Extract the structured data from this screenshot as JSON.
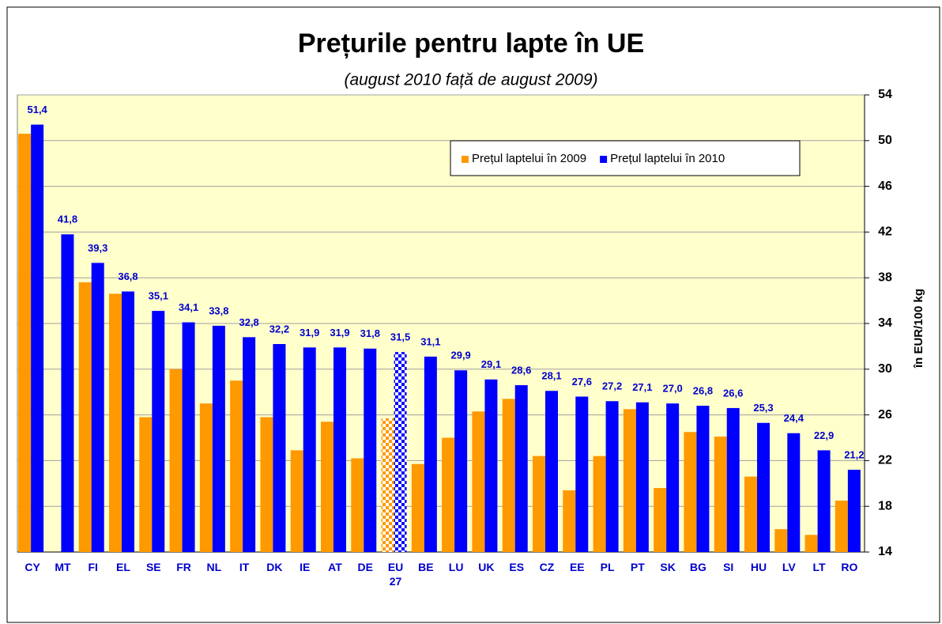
{
  "chart_data": {
    "type": "bar",
    "title": "Prețurile pentru lapte în UE",
    "subtitle": "(august 2010 față de august 2009)",
    "y_label": "în EUR/100 kg",
    "categories": [
      "CY",
      "MT",
      "FI",
      "EL",
      "SE",
      "FR",
      "NL",
      "IT",
      "DK",
      "IE",
      "AT",
      "DE",
      "EU 27",
      "BE",
      "LU",
      "UK",
      "ES",
      "CZ",
      "EE",
      "PL",
      "PT",
      "SK",
      "BG",
      "SI",
      "HU",
      "LV",
      "LT",
      "RO"
    ],
    "series": [
      {
        "name": "Prețul laptelui în 2009",
        "color": "#ff9900",
        "values": [
          50.6,
          null,
          37.6,
          36.6,
          25.8,
          30.0,
          27.0,
          29.0,
          25.8,
          22.9,
          25.4,
          22.2,
          25.7,
          21.7,
          24.0,
          26.3,
          27.4,
          22.4,
          19.4,
          22.4,
          26.5,
          19.6,
          24.5,
          24.1,
          20.6,
          16.0,
          15.5,
          18.5
        ]
      },
      {
        "name": "Prețul laptelui în 2010",
        "color": "#0000ff",
        "values": [
          51.4,
          41.8,
          39.3,
          36.8,
          35.1,
          34.1,
          33.8,
          32.8,
          32.2,
          31.9,
          31.9,
          31.8,
          31.5,
          31.1,
          29.9,
          29.1,
          28.6,
          28.1,
          27.6,
          27.2,
          27.1,
          27.0,
          26.8,
          26.6,
          25.3,
          24.4,
          22.9,
          21.2
        ],
        "value_labels": [
          "51,4",
          "41,8",
          "39,3",
          "36,8",
          "35,1",
          "34,1",
          "33,8",
          "32,8",
          "32,2",
          "31,9",
          "31,9",
          "31,8",
          "31,5",
          "31,1",
          "29,9",
          "29,1",
          "28,6",
          "28,1",
          "27,6",
          "27,2",
          "27,1",
          "27,0",
          "26,8",
          "26,6",
          "25,3",
          "24,4",
          "22,9",
          "21,2"
        ]
      }
    ],
    "highlight": "EU 27",
    "ylim": [
      14,
      54
    ],
    "yticks": [
      14,
      18,
      22,
      26,
      30,
      34,
      38,
      42,
      46,
      50,
      54
    ],
    "grid": true,
    "legend": "top-right",
    "plot_background": "#ffffcc"
  }
}
